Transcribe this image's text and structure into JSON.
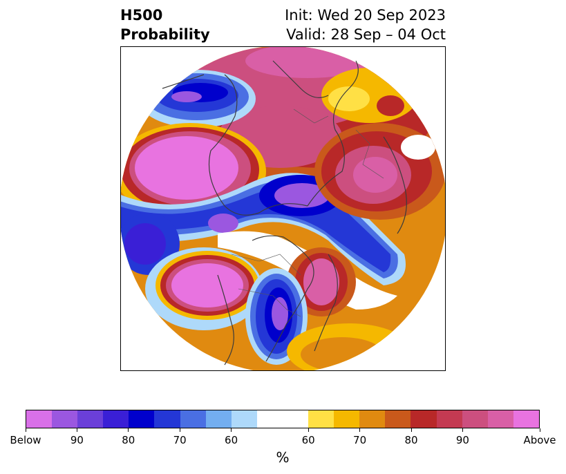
{
  "title": {
    "left_line1": "H500",
    "left_line2": "Probability",
    "right_line1": "Init: Wed 20 Sep 2023",
    "right_line2": "Valid: 28 Sep – 04 Oct"
  },
  "colorbar": {
    "colors": [
      "#d970e8",
      "#9b57e0",
      "#6b3fd9",
      "#3a1fd6",
      "#0000cc",
      "#2437d6",
      "#4a6fe3",
      "#73aef0",
      "#aed9fa",
      "#ffffff",
      "#ffe045",
      "#f5b800",
      "#e08a10",
      "#c9591b",
      "#b82828",
      "#c43a52",
      "#cc4f7f",
      "#d95fa6",
      "#e873e0"
    ],
    "widths": [
      1,
      1,
      1,
      1,
      1,
      1,
      1,
      1,
      1,
      2,
      1,
      1,
      1,
      1,
      1,
      1,
      1,
      1,
      1
    ],
    "tick_labels": [
      "Below",
      "90",
      "80",
      "70",
      "60",
      "60",
      "70",
      "80",
      "90",
      "Above"
    ],
    "unit": "%"
  },
  "map": {
    "projection": "north polar stereographic",
    "palette": {
      "above_strong": "#e873e0",
      "above_med": "#cc4f7f",
      "above_red": "#b82828",
      "above_orange": "#e08a10",
      "above_yellow": "#f5b800",
      "above_light": "#ffe045",
      "below_light": "#aed9fa",
      "below_sky": "#73aef0",
      "below_blue": "#2437d6",
      "below_dark": "#0000cc",
      "below_violet": "#9b57e0",
      "coast": "#3c3c3c"
    }
  }
}
